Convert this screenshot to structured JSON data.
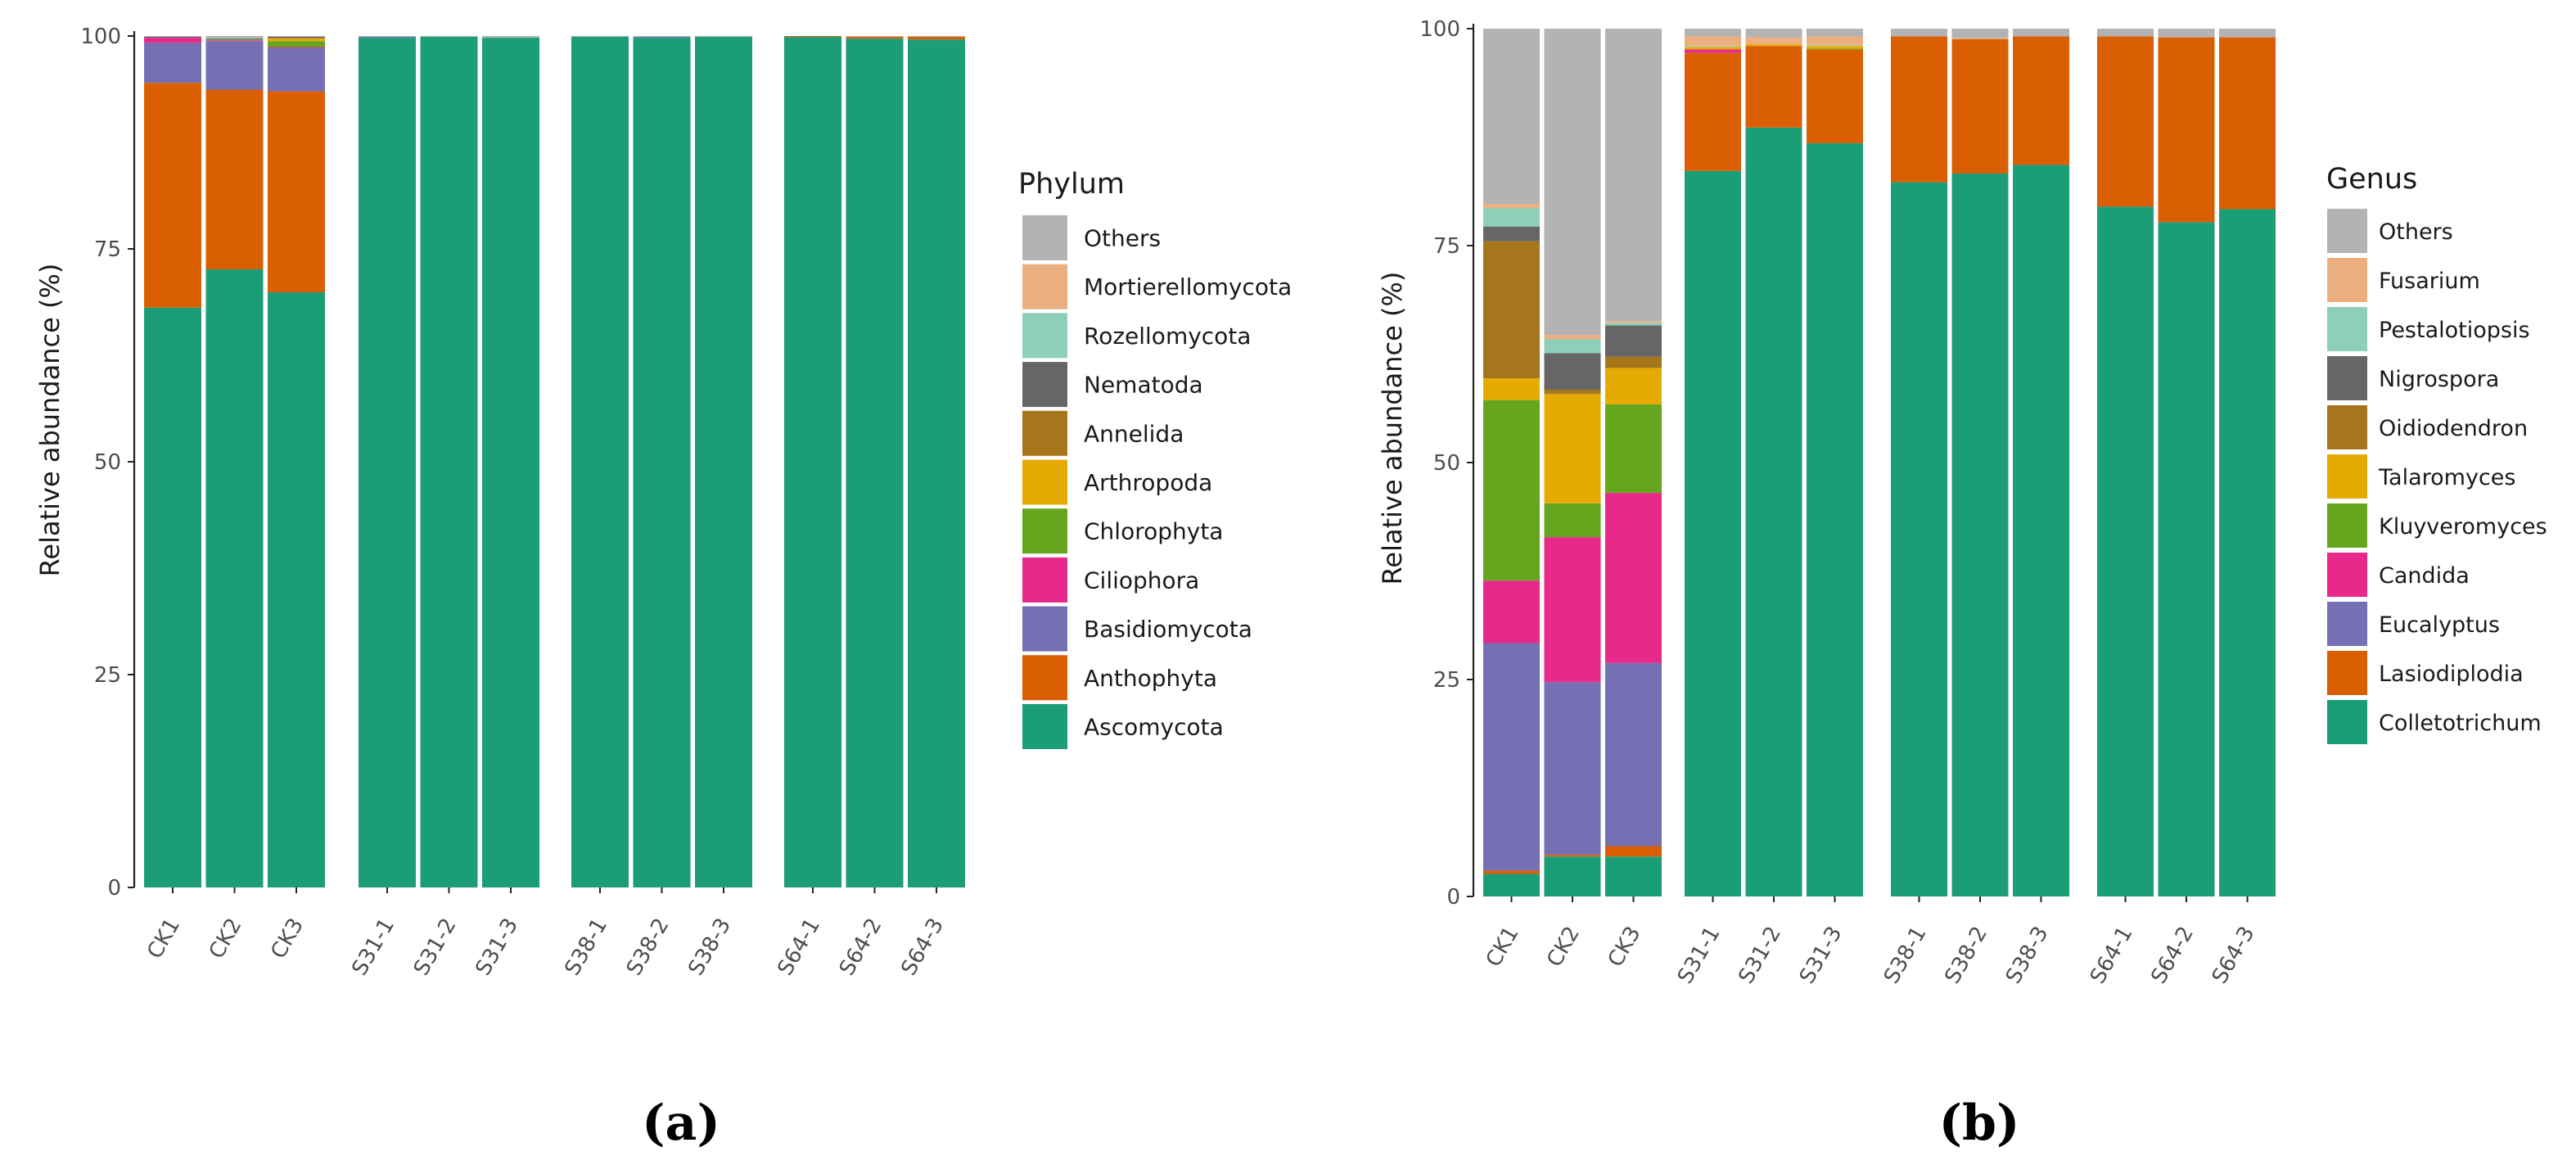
{
  "chart_data": [
    {
      "type": "bar",
      "stacked": true,
      "panel_label": "(a)",
      "ylabel": "Relative abundance (%)",
      "ylim": [
        0,
        100
      ],
      "yticks": [
        "0",
        "25",
        "50",
        "75",
        "100"
      ],
      "legend_title": "Phylum",
      "legend_position": "right",
      "groups": [
        [
          "CK1",
          "CK2",
          "CK3"
        ],
        [
          "S31-1",
          "S31-2",
          "S31-3"
        ],
        [
          "S38-1",
          "S38-2",
          "S38-3"
        ],
        [
          "S64-1",
          "S64-2",
          "S64-3"
        ]
      ],
      "categories": [
        "CK1",
        "CK2",
        "CK3",
        "S31-1",
        "S31-2",
        "S31-3",
        "S38-1",
        "S38-2",
        "S38-3",
        "S64-1",
        "S64-2",
        "S64-3"
      ],
      "series": [
        {
          "name": "Ascomycota",
          "color": "#1b9e77",
          "values": [
            68.1,
            72.6,
            69.9,
            99.8,
            99.9,
            99.8,
            99.9,
            99.8,
            99.9,
            99.9,
            99.7,
            99.6
          ]
        },
        {
          "name": "Anthophyta",
          "color": "#d95f02",
          "values": [
            26.4,
            21.1,
            23.6,
            0,
            0,
            0,
            0,
            0,
            0,
            0.1,
            0.2,
            0.3
          ]
        },
        {
          "name": "Basidiomycota",
          "color": "#7570b3",
          "values": [
            4.7,
            5.7,
            5.1,
            0.1,
            0,
            0,
            0,
            0.1,
            0,
            0,
            0,
            0
          ]
        },
        {
          "name": "Ciliophora",
          "color": "#e7298a",
          "values": [
            0.6,
            0.1,
            0.1,
            0,
            0,
            0,
            0,
            0,
            0,
            0,
            0,
            0
          ]
        },
        {
          "name": "Chlorophyta",
          "color": "#66a61e",
          "values": [
            0,
            0.1,
            0.7,
            0,
            0,
            0,
            0,
            0,
            0,
            0,
            0,
            0
          ]
        },
        {
          "name": "Arthropoda",
          "color": "#e6ab02",
          "values": [
            0,
            0,
            0.3,
            0,
            0,
            0,
            0,
            0,
            0,
            0,
            0,
            0
          ]
        },
        {
          "name": "Annelida",
          "color": "#a6761d",
          "values": [
            0,
            0,
            0.1,
            0,
            0,
            0,
            0,
            0,
            0,
            0,
            0,
            0
          ]
        },
        {
          "name": "Nematoda",
          "color": "#666666",
          "values": [
            0.1,
            0.1,
            0.1,
            0,
            0,
            0,
            0,
            0,
            0,
            0,
            0,
            0
          ]
        },
        {
          "name": "Rozellomycota",
          "color": "#8ecfb9",
          "values": [
            0,
            0,
            0,
            0,
            0,
            0,
            0,
            0,
            0,
            0,
            0,
            0
          ]
        },
        {
          "name": "Mortierellomycota",
          "color": "#ecaf80",
          "values": [
            0,
            0,
            0,
            0,
            0,
            0,
            0,
            0,
            0,
            0,
            0,
            0
          ]
        },
        {
          "name": "Others",
          "color": "#b3b3b3",
          "values": [
            0.1,
            0.3,
            0.1,
            0.1,
            0.1,
            0.2,
            0.1,
            0.1,
            0.1,
            0,
            0.1,
            0.1
          ]
        }
      ]
    },
    {
      "type": "bar",
      "stacked": true,
      "panel_label": "(b)",
      "ylabel": "Relative abundance (%)",
      "ylim": [
        0,
        100
      ],
      "yticks": [
        "0",
        "25",
        "50",
        "75",
        "100"
      ],
      "legend_title": "Genus",
      "legend_position": "right",
      "groups": [
        [
          "CK1",
          "CK2",
          "CK3"
        ],
        [
          "S31-1",
          "S31-2",
          "S31-3"
        ],
        [
          "S38-1",
          "S38-2",
          "S38-3"
        ],
        [
          "S64-1",
          "S64-2",
          "S64-3"
        ]
      ],
      "categories": [
        "CK1",
        "CK2",
        "CK3",
        "S31-1",
        "S31-2",
        "S31-3",
        "S38-1",
        "S38-2",
        "S38-3",
        "S64-1",
        "S64-2",
        "S64-3"
      ],
      "series": [
        {
          "name": "Colletotrichum",
          "color": "#1b9e77",
          "values": [
            2.6,
            4.6,
            4.6,
            83.6,
            88.6,
            86.8,
            82.3,
            83.3,
            84.3,
            79.5,
            77.7,
            79.2
          ]
        },
        {
          "name": "Lasiodiplodia",
          "color": "#d95f02",
          "values": [
            0.4,
            0.2,
            1.2,
            13.6,
            9.4,
            10.8,
            16.8,
            15.5,
            14.8,
            19.6,
            21.3,
            19.8
          ]
        },
        {
          "name": "Eucalyptus",
          "color": "#7570b3",
          "values": [
            26.2,
            19.9,
            21.1,
            0,
            0,
            0,
            0,
            0,
            0,
            0,
            0,
            0
          ]
        },
        {
          "name": "Candida",
          "color": "#e7298a",
          "values": [
            7.2,
            16.7,
            19.6,
            0.4,
            0,
            0,
            0,
            0,
            0,
            0,
            0,
            0
          ]
        },
        {
          "name": "Kluyveromyces",
          "color": "#66a61e",
          "values": [
            20.8,
            3.9,
            10.2,
            0,
            0,
            0.1,
            0,
            0,
            0,
            0,
            0,
            0
          ]
        },
        {
          "name": "Talaromyces",
          "color": "#e6ab02",
          "values": [
            2.5,
            12.6,
            4.2,
            0.3,
            0.2,
            0.3,
            0,
            0,
            0,
            0,
            0,
            0
          ]
        },
        {
          "name": "Oidiodendron",
          "color": "#a6761d",
          "values": [
            15.8,
            0.5,
            1.3,
            0,
            0,
            0,
            0,
            0,
            0,
            0,
            0,
            0
          ]
        },
        {
          "name": "Nigrospora",
          "color": "#666666",
          "values": [
            1.7,
            4.2,
            3.6,
            0,
            0,
            0,
            0,
            0,
            0,
            0,
            0,
            0
          ]
        },
        {
          "name": "Pestalotiopsis",
          "color": "#8ecfb9",
          "values": [
            2.1,
            1.6,
            0.3,
            0.1,
            0,
            0.1,
            0,
            0,
            0,
            0,
            0,
            0
          ]
        },
        {
          "name": "Fusarium",
          "color": "#ecaf80",
          "values": [
            0.5,
            0.5,
            0.2,
            1.1,
            0.8,
            1.0,
            0,
            0.1,
            0,
            0,
            0,
            0
          ]
        },
        {
          "name": "Others",
          "color": "#b3b3b3",
          "values": [
            20.2,
            35.3,
            33.7,
            0.9,
            1.0,
            0.9,
            0.9,
            1.1,
            0.9,
            0.9,
            1.0,
            1.0
          ]
        }
      ]
    }
  ]
}
